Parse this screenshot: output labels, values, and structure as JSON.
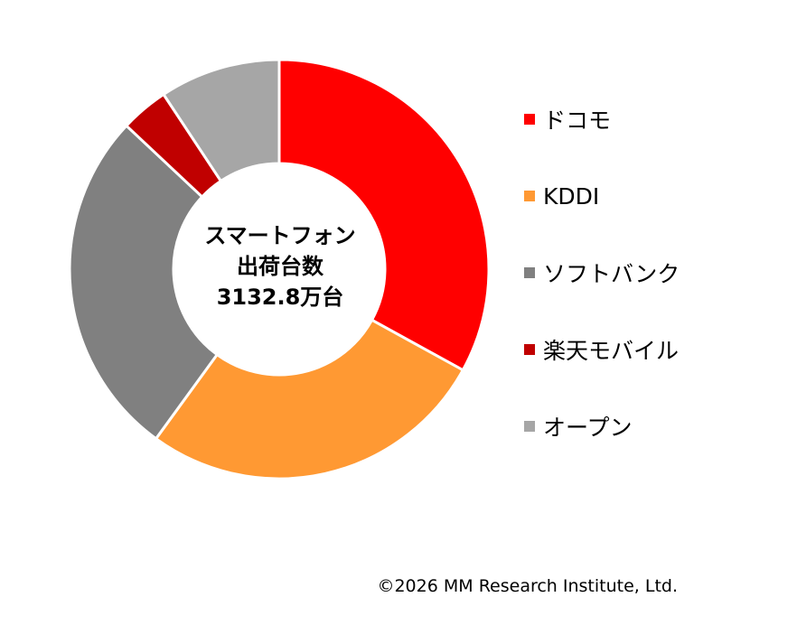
{
  "chart_data": {
    "type": "pie",
    "style": "donut",
    "start": "12 o'clock",
    "direction": "clockwise",
    "legend": "right",
    "center_text": [
      "スマートフォン",
      "出荷台数",
      "3132.8万台"
    ],
    "slices": [
      {
        "label": "ドコモ",
        "value": 33.0,
        "color": "#FF0000"
      },
      {
        "label": "KDDI",
        "value": 27.0,
        "color": "#FF9933"
      },
      {
        "label": "ソフトバンク",
        "value": 27.0,
        "color": "#808080"
      },
      {
        "label": "楽天モバイル",
        "value": 3.7,
        "color": "#C00000"
      },
      {
        "label": "オープン",
        "value": 9.3,
        "color": "#A6A6A6"
      }
    ]
  },
  "footer": {
    "copyright": "©2026 MM Research Institute, Ltd."
  }
}
